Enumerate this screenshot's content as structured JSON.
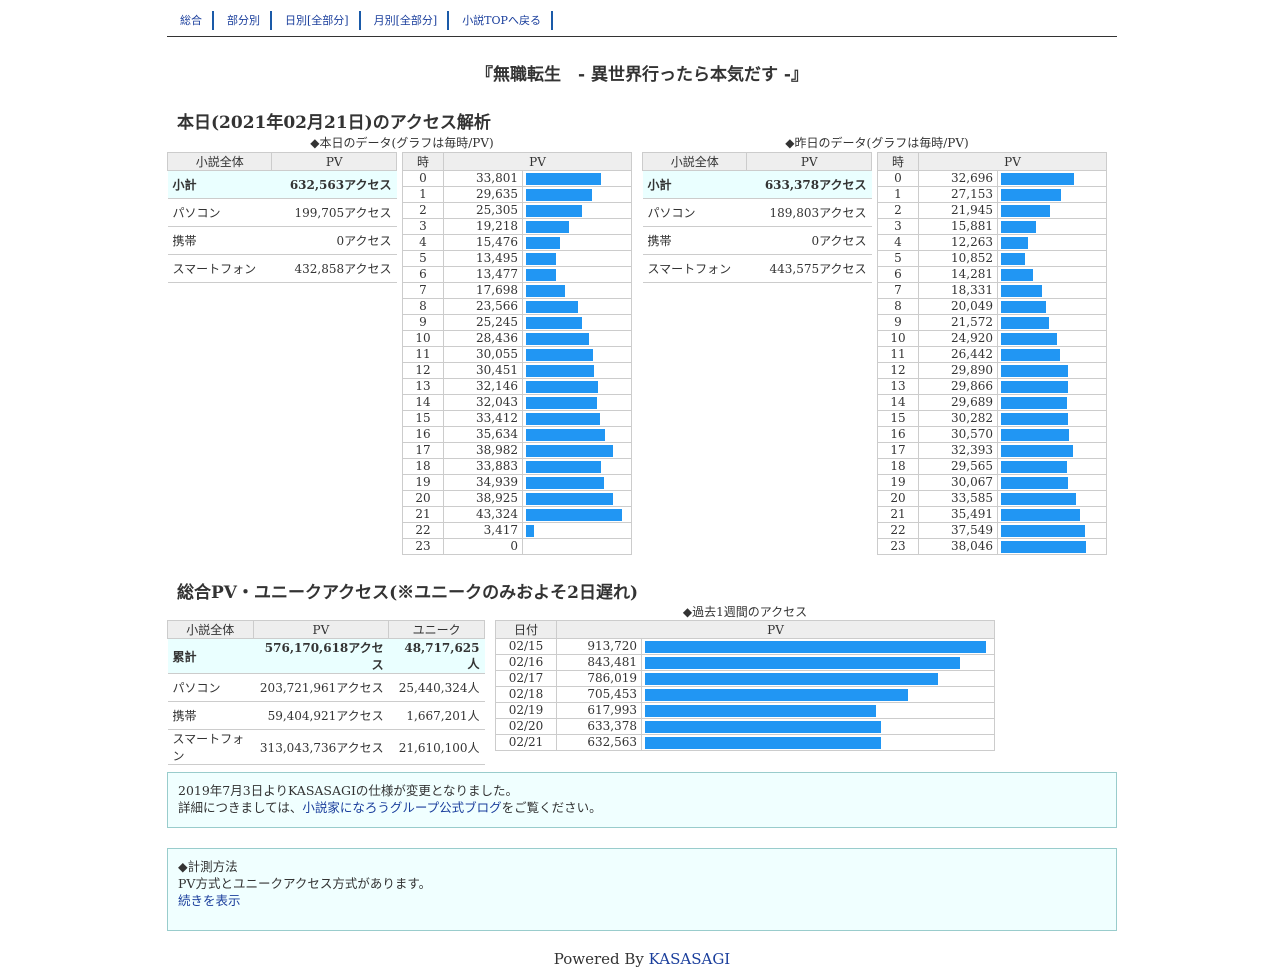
{
  "nav": [
    "総合",
    "部分別",
    "日別[全部分]",
    "月別[全部分]",
    "小説TOPへ戻る"
  ],
  "title": "『無職転生　- 異世界行ったら本気だす -』",
  "today": {
    "heading": "本日(2021年02月21日)のアクセス解析",
    "caption": "◆本日のデータ(グラフは毎時/PV)",
    "summary_headers": [
      "小説全体",
      "PV"
    ],
    "summary": [
      {
        "label": "小計",
        "value": "632,563アクセス"
      },
      {
        "label": "パソコン",
        "value": "199,705アクセス"
      },
      {
        "label": "携帯",
        "value": "0アクセス"
      },
      {
        "label": "スマートフォン",
        "value": "432,858アクセス"
      }
    ],
    "hourly_headers": [
      "時",
      "PV"
    ],
    "hourly": [
      {
        "h": "0",
        "v": "33,801",
        "n": 33801
      },
      {
        "h": "1",
        "v": "29,635",
        "n": 29635
      },
      {
        "h": "2",
        "v": "25,305",
        "n": 25305
      },
      {
        "h": "3",
        "v": "19,218",
        "n": 19218
      },
      {
        "h": "4",
        "v": "15,476",
        "n": 15476
      },
      {
        "h": "5",
        "v": "13,495",
        "n": 13495
      },
      {
        "h": "6",
        "v": "13,477",
        "n": 13477
      },
      {
        "h": "7",
        "v": "17,698",
        "n": 17698
      },
      {
        "h": "8",
        "v": "23,566",
        "n": 23566
      },
      {
        "h": "9",
        "v": "25,245",
        "n": 25245
      },
      {
        "h": "10",
        "v": "28,436",
        "n": 28436
      },
      {
        "h": "11",
        "v": "30,055",
        "n": 30055
      },
      {
        "h": "12",
        "v": "30,451",
        "n": 30451
      },
      {
        "h": "13",
        "v": "32,146",
        "n": 32146
      },
      {
        "h": "14",
        "v": "32,043",
        "n": 32043
      },
      {
        "h": "15",
        "v": "33,412",
        "n": 33412
      },
      {
        "h": "16",
        "v": "35,634",
        "n": 35634
      },
      {
        "h": "17",
        "v": "38,982",
        "n": 38982
      },
      {
        "h": "18",
        "v": "33,883",
        "n": 33883
      },
      {
        "h": "19",
        "v": "34,939",
        "n": 34939
      },
      {
        "h": "20",
        "v": "38,925",
        "n": 38925
      },
      {
        "h": "21",
        "v": "43,324",
        "n": 43324
      },
      {
        "h": "22",
        "v": "3,417",
        "n": 3417
      },
      {
        "h": "23",
        "v": "0",
        "n": 0
      }
    ]
  },
  "yesterday": {
    "caption": "◆昨日のデータ(グラフは毎時/PV)",
    "summary_headers": [
      "小説全体",
      "PV"
    ],
    "summary": [
      {
        "label": "小計",
        "value": "633,378アクセス"
      },
      {
        "label": "パソコン",
        "value": "189,803アクセス"
      },
      {
        "label": "携帯",
        "value": "0アクセス"
      },
      {
        "label": "スマートフォン",
        "value": "443,575アクセス"
      }
    ],
    "hourly_headers": [
      "時",
      "PV"
    ],
    "hourly": [
      {
        "h": "0",
        "v": "32,696",
        "n": 32696
      },
      {
        "h": "1",
        "v": "27,153",
        "n": 27153
      },
      {
        "h": "2",
        "v": "21,945",
        "n": 21945
      },
      {
        "h": "3",
        "v": "15,881",
        "n": 15881
      },
      {
        "h": "4",
        "v": "12,263",
        "n": 12263
      },
      {
        "h": "5",
        "v": "10,852",
        "n": 10852
      },
      {
        "h": "6",
        "v": "14,281",
        "n": 14281
      },
      {
        "h": "7",
        "v": "18,331",
        "n": 18331
      },
      {
        "h": "8",
        "v": "20,049",
        "n": 20049
      },
      {
        "h": "9",
        "v": "21,572",
        "n": 21572
      },
      {
        "h": "10",
        "v": "24,920",
        "n": 24920
      },
      {
        "h": "11",
        "v": "26,442",
        "n": 26442
      },
      {
        "h": "12",
        "v": "29,890",
        "n": 29890
      },
      {
        "h": "13",
        "v": "29,866",
        "n": 29866
      },
      {
        "h": "14",
        "v": "29,689",
        "n": 29689
      },
      {
        "h": "15",
        "v": "30,282",
        "n": 30282
      },
      {
        "h": "16",
        "v": "30,570",
        "n": 30570
      },
      {
        "h": "17",
        "v": "32,393",
        "n": 32393
      },
      {
        "h": "18",
        "v": "29,565",
        "n": 29565
      },
      {
        "h": "19",
        "v": "30,067",
        "n": 30067
      },
      {
        "h": "20",
        "v": "33,585",
        "n": 33585
      },
      {
        "h": "21",
        "v": "35,491",
        "n": 35491
      },
      {
        "h": "22",
        "v": "37,549",
        "n": 37549
      },
      {
        "h": "23",
        "v": "38,046",
        "n": 38046
      }
    ]
  },
  "total": {
    "heading": "総合PV・ユニークアクセス(※ユニークのみおよそ2日遅れ)",
    "headers": [
      "小説全体",
      "PV",
      "ユニーク"
    ],
    "rows": [
      {
        "label": "累計",
        "pv": "576,170,618アクセス",
        "uq": "48,717,625人"
      },
      {
        "label": "パソコン",
        "pv": "203,721,961アクセス",
        "uq": "25,440,324人"
      },
      {
        "label": "携帯",
        "pv": "59,404,921アクセス",
        "uq": "1,667,201人"
      },
      {
        "label": "スマートフォン",
        "pv": "313,043,736アクセス",
        "uq": "21,610,100人"
      }
    ]
  },
  "weekly": {
    "caption": "◆過去1週間のアクセス",
    "headers": [
      "日付",
      "PV"
    ],
    "rows": [
      {
        "d": "02/15",
        "v": "913,720",
        "n": 913720
      },
      {
        "d": "02/16",
        "v": "843,481",
        "n": 843481
      },
      {
        "d": "02/17",
        "v": "786,019",
        "n": 786019
      },
      {
        "d": "02/18",
        "v": "705,453",
        "n": 705453
      },
      {
        "d": "02/19",
        "v": "617,993",
        "n": 617993
      },
      {
        "d": "02/20",
        "v": "633,378",
        "n": 633378
      },
      {
        "d": "02/21",
        "v": "632,563",
        "n": 632563
      }
    ]
  },
  "notice1": {
    "line1": "2019年7月3日よりKASASAGIの仕様が変更となりました。",
    "line2_pre": "詳細につきましては、",
    "link": "小説家になろうグループ公式ブログ",
    "line2_post": "をご覧ください。"
  },
  "notice2": {
    "line1": "◆計測方法",
    "line2": "PV方式とユニークアクセス方式があります。",
    "link": "続きを表示"
  },
  "footer": {
    "text": "Powered By ",
    "link": "KASASAGI"
  },
  "colors": {
    "bar": "#2196f3",
    "notice_bg": "#f0ffff",
    "link": "#1a3e9c"
  }
}
